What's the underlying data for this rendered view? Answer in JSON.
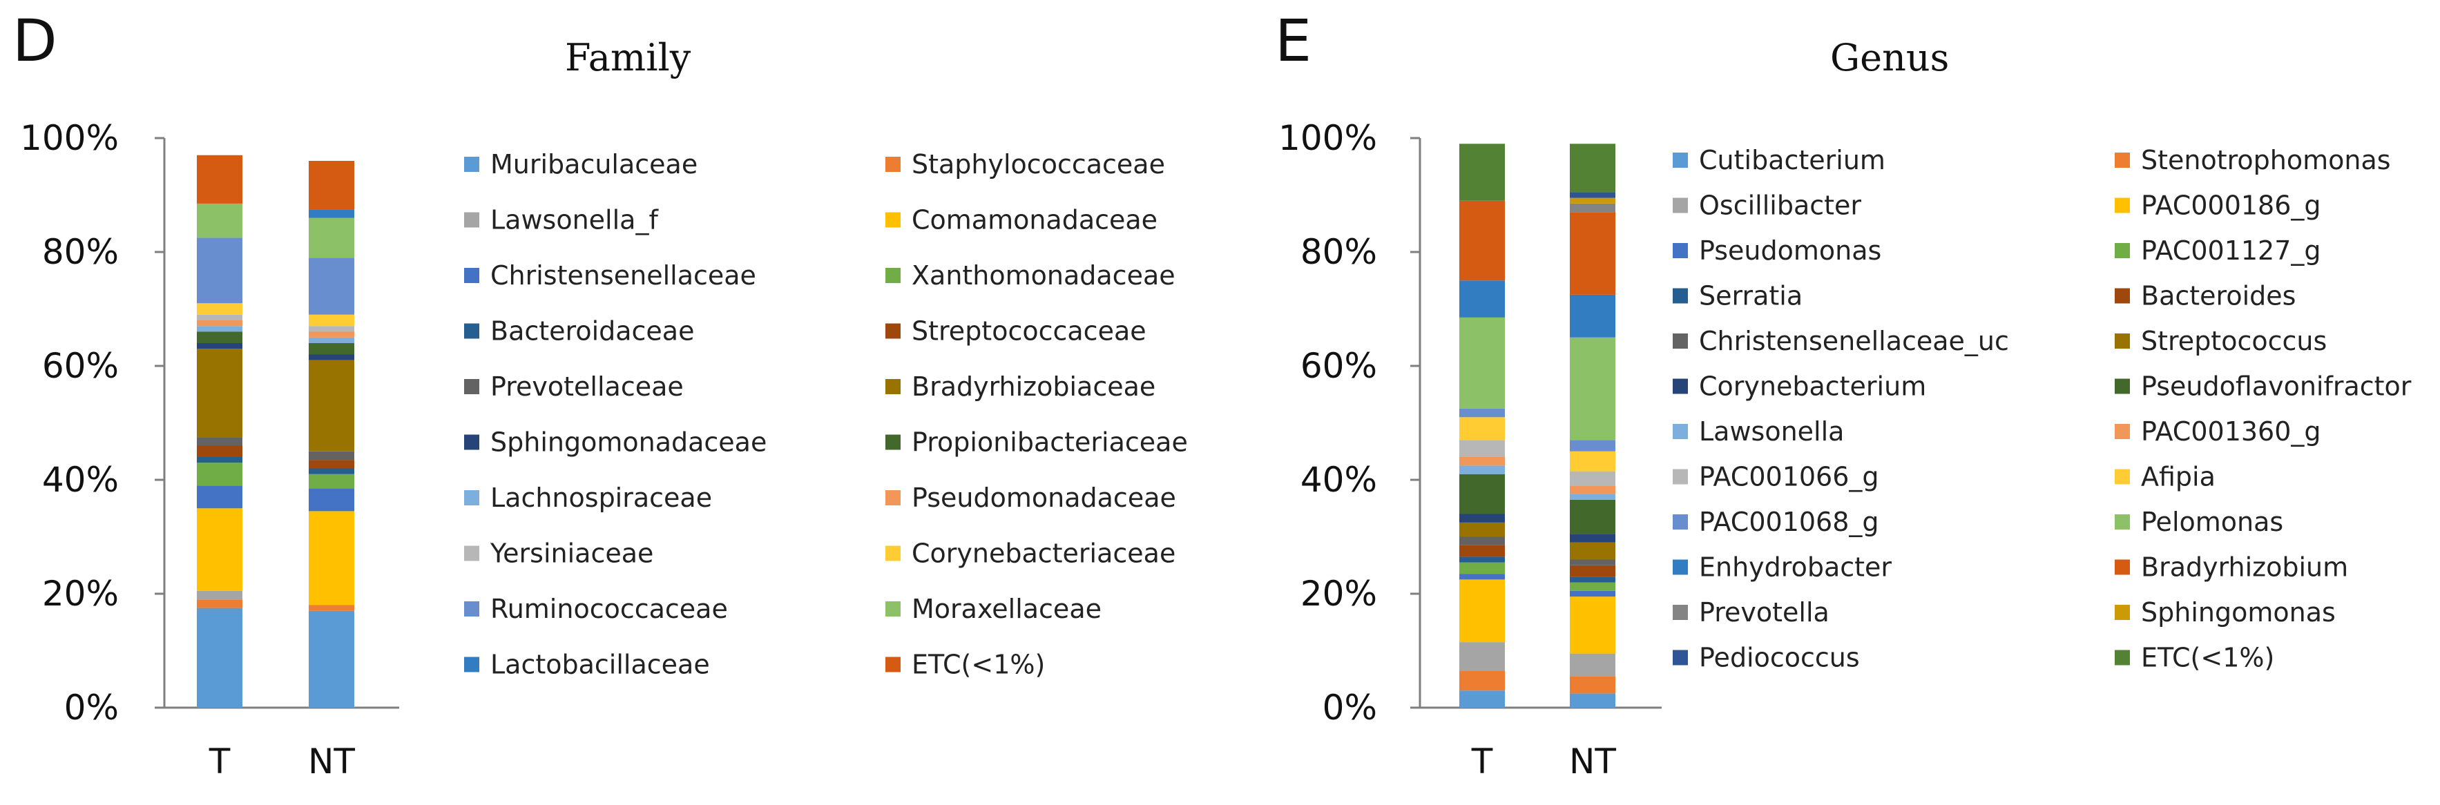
{
  "chart_data": [
    {
      "type": "bar",
      "stacked": true,
      "panel_label": "D",
      "title": "Family",
      "categories": [
        "T",
        "NT"
      ],
      "ylim": [
        0,
        100
      ],
      "yticks": [
        "0%",
        "20%",
        "40%",
        "60%",
        "80%",
        "100%"
      ],
      "xlabel": "",
      "ylabel": "",
      "legend_position": "right",
      "series": [
        {
          "name": "Muribaculaceae",
          "color": "#5B9BD5",
          "values": [
            17.5,
            17
          ]
        },
        {
          "name": "Staphylococcaceae",
          "color": "#ED7D31",
          "values": [
            1.5,
            1
          ]
        },
        {
          "name": "Lawsonella_f",
          "color": "#A5A5A5",
          "values": [
            1.5,
            0
          ]
        },
        {
          "name": "Comamonadaceae",
          "color": "#FFC000",
          "values": [
            14.5,
            16.5
          ]
        },
        {
          "name": "Christensenellaceae",
          "color": "#4472C4",
          "values": [
            4,
            4
          ]
        },
        {
          "name": "Xanthomonadaceae",
          "color": "#70AD47",
          "values": [
            4,
            2.5
          ]
        },
        {
          "name": "Bacteroidaceae",
          "color": "#255E91",
          "values": [
            1,
            1
          ]
        },
        {
          "name": "Streptococcaceae",
          "color": "#9E480E",
          "values": [
            2,
            1.5
          ]
        },
        {
          "name": "Prevotellaceae",
          "color": "#636363",
          "values": [
            1.5,
            1.5
          ]
        },
        {
          "name": "Bradyrhizobiaceae",
          "color": "#997300",
          "values": [
            15.5,
            16
          ]
        },
        {
          "name": "Sphingomonadaceae",
          "color": "#264478",
          "values": [
            1,
            1
          ]
        },
        {
          "name": "Propionibacteriaceae",
          "color": "#43682B",
          "values": [
            2,
            2
          ]
        },
        {
          "name": "Lachnospiraceae",
          "color": "#7CAFDD",
          "values": [
            1,
            1
          ]
        },
        {
          "name": "Pseudomonadaceae",
          "color": "#F1975A",
          "values": [
            1,
            1
          ]
        },
        {
          "name": "Yersiniaceae",
          "color": "#B7B7B7",
          "values": [
            1,
            1
          ]
        },
        {
          "name": "Corynebacteriaceae",
          "color": "#FFCD33",
          "values": [
            2,
            2
          ]
        },
        {
          "name": "Ruminococcaceae",
          "color": "#698ED0",
          "values": [
            11.5,
            10
          ]
        },
        {
          "name": "Moraxellaceae",
          "color": "#8CC168",
          "values": [
            6,
            7
          ]
        },
        {
          "name": "Lactobacillaceae",
          "color": "#327DC2",
          "values": [
            0,
            1.5
          ]
        },
        {
          "name": "ETC(<1%)",
          "color": "#D55A12",
          "values": [
            8.5,
            8.5
          ]
        }
      ]
    },
    {
      "type": "bar",
      "stacked": true,
      "panel_label": "E",
      "title": "Genus",
      "categories": [
        "T",
        "NT"
      ],
      "ylim": [
        0,
        100
      ],
      "yticks": [
        "0%",
        "20%",
        "40%",
        "60%",
        "80%",
        "100%"
      ],
      "xlabel": "",
      "ylabel": "",
      "legend_position": "right",
      "series": [
        {
          "name": "Cutibacterium",
          "color": "#5B9BD5",
          "values": [
            3,
            2.5
          ]
        },
        {
          "name": "Stenotrophomonas",
          "color": "#ED7D31",
          "values": [
            3.5,
            3
          ]
        },
        {
          "name": "Oscillibacter",
          "color": "#A5A5A5",
          "values": [
            5,
            4
          ]
        },
        {
          "name": "PAC000186_g",
          "color": "#FFC000",
          "values": [
            11,
            10
          ]
        },
        {
          "name": "Pseudomonas",
          "color": "#4472C4",
          "values": [
            1,
            1
          ]
        },
        {
          "name": "PAC001127_g",
          "color": "#70AD47",
          "values": [
            2,
            1.5
          ]
        },
        {
          "name": "Serratia",
          "color": "#255E91",
          "values": [
            1,
            1
          ]
        },
        {
          "name": "Bacteroides",
          "color": "#9E480E",
          "values": [
            2,
            2
          ]
        },
        {
          "name": "Christensenellaceae_uc",
          "color": "#636363",
          "values": [
            1.5,
            1
          ]
        },
        {
          "name": "Streptococcus",
          "color": "#997300",
          "values": [
            2.5,
            3
          ]
        },
        {
          "name": "Corynebacterium",
          "color": "#264478",
          "values": [
            1.5,
            1.5
          ]
        },
        {
          "name": "Pseudoflavonifractor",
          "color": "#43682B",
          "values": [
            7,
            6
          ]
        },
        {
          "name": "Lawsonella",
          "color": "#7CAFDD",
          "values": [
            1.5,
            1
          ]
        },
        {
          "name": "PAC001360_g",
          "color": "#F1975A",
          "values": [
            1.5,
            1.5
          ]
        },
        {
          "name": "PAC001066_g",
          "color": "#B7B7B7",
          "values": [
            3,
            2.5
          ]
        },
        {
          "name": "Afipia",
          "color": "#FFCD33",
          "values": [
            4,
            3.5
          ]
        },
        {
          "name": "PAC001068_g",
          "color": "#698ED0",
          "values": [
            1.5,
            2
          ]
        },
        {
          "name": "Pelomonas",
          "color": "#8CC168",
          "values": [
            16,
            18
          ]
        },
        {
          "name": "Enhydrobacter",
          "color": "#327DC2",
          "values": [
            6.5,
            7.5
          ]
        },
        {
          "name": "Bradyrhizobium",
          "color": "#D55A12",
          "values": [
            14,
            14.5
          ]
        },
        {
          "name": "Prevotella",
          "color": "#848484",
          "values": [
            0,
            1.5
          ]
        },
        {
          "name": "Sphingomonas",
          "color": "#CC9A06",
          "values": [
            0,
            1
          ]
        },
        {
          "name": "Pediococcus",
          "color": "#2F5597",
          "values": [
            0,
            1
          ]
        },
        {
          "name": "ETC(<1%)",
          "color": "#548235",
          "values": [
            10,
            8.5
          ]
        }
      ]
    }
  ]
}
